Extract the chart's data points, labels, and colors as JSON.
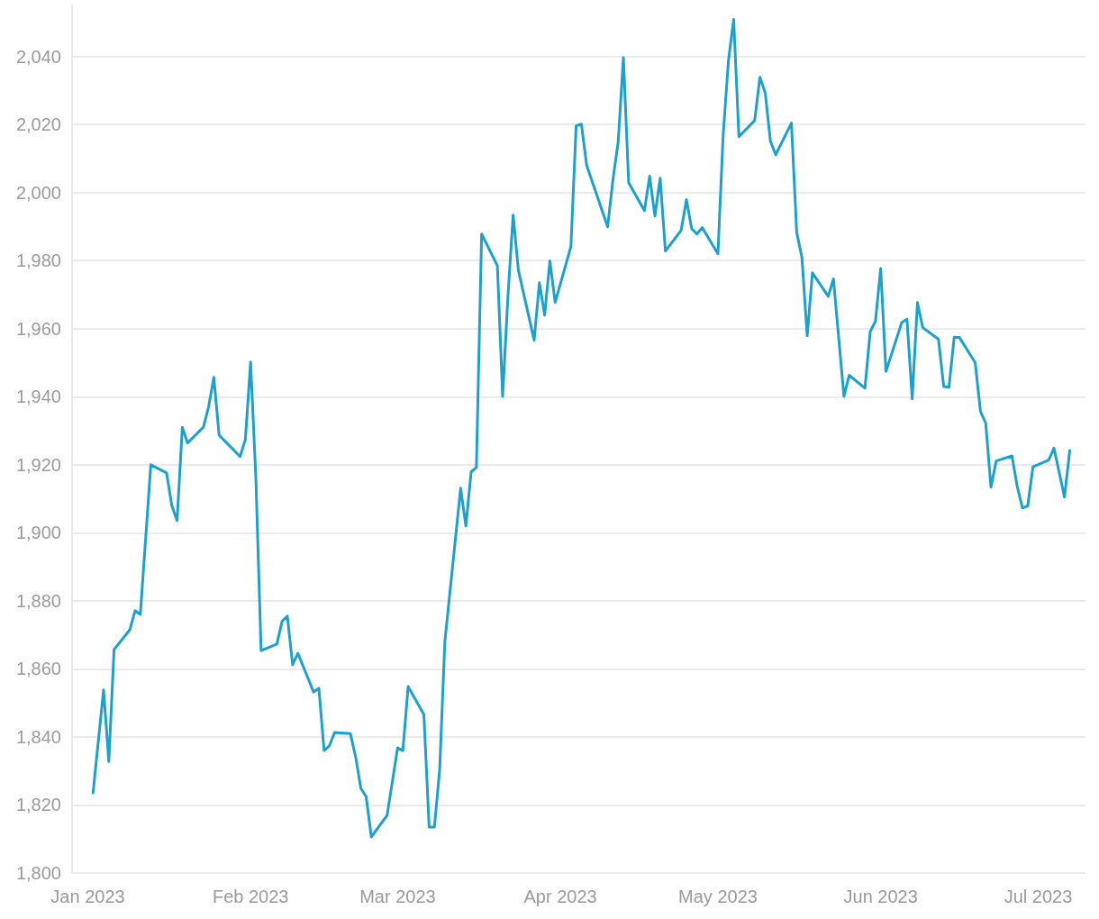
{
  "chart_data": {
    "type": "line",
    "xlim": [
      "2022-12-29",
      "2023-07-10"
    ],
    "ylim": [
      1800,
      2055
    ],
    "xticks": [
      {
        "value": "2023-01-01",
        "label": "Jan 2023"
      },
      {
        "value": "2023-02-01",
        "label": "Feb 2023"
      },
      {
        "value": "2023-03-01",
        "label": "Mar 2023"
      },
      {
        "value": "2023-04-01",
        "label": "Apr 2023"
      },
      {
        "value": "2023-05-01",
        "label": "May 2023"
      },
      {
        "value": "2023-06-01",
        "label": "Jun 2023"
      },
      {
        "value": "2023-07-01",
        "label": "Jul 2023"
      }
    ],
    "yticks": [
      {
        "value": 1800,
        "label": "1,800"
      },
      {
        "value": 1820,
        "label": "1,820"
      },
      {
        "value": 1840,
        "label": "1,840"
      },
      {
        "value": 1860,
        "label": "1,860"
      },
      {
        "value": 1880,
        "label": "1,880"
      },
      {
        "value": 1900,
        "label": "1,900"
      },
      {
        "value": 1920,
        "label": "1,920"
      },
      {
        "value": 1940,
        "label": "1,940"
      },
      {
        "value": 1960,
        "label": "1,960"
      },
      {
        "value": 1980,
        "label": "1,980"
      },
      {
        "value": 2000,
        "label": "2,000"
      },
      {
        "value": 2020,
        "label": "2,020"
      },
      {
        "value": 2040,
        "label": "2,040"
      }
    ],
    "grid": "y",
    "marker": "none",
    "line_style": "solid",
    "x": [
      "2023-01-02",
      "2023-01-04",
      "2023-01-05",
      "2023-01-06",
      "2023-01-09",
      "2023-01-10",
      "2023-01-11",
      "2023-01-13",
      "2023-01-16",
      "2023-01-17",
      "2023-01-18",
      "2023-01-19",
      "2023-01-20",
      "2023-01-23",
      "2023-01-24",
      "2023-01-25",
      "2023-01-26",
      "2023-01-30",
      "2023-01-31",
      "2023-02-01",
      "2023-02-02",
      "2023-02-03",
      "2023-02-06",
      "2023-02-07",
      "2023-02-08",
      "2023-02-09",
      "2023-02-10",
      "2023-02-13",
      "2023-02-14",
      "2023-02-15",
      "2023-02-16",
      "2023-02-17",
      "2023-02-20",
      "2023-02-21",
      "2023-02-22",
      "2023-02-23",
      "2023-02-24",
      "2023-02-27",
      "2023-03-01",
      "2023-03-02",
      "2023-03-03",
      "2023-03-06",
      "2023-03-07",
      "2023-03-08",
      "2023-03-09",
      "2023-03-10",
      "2023-03-13",
      "2023-03-14",
      "2023-03-15",
      "2023-03-16",
      "2023-03-17",
      "2023-03-20",
      "2023-03-21",
      "2023-03-22",
      "2023-03-23",
      "2023-03-24",
      "2023-03-27",
      "2023-03-28",
      "2023-03-29",
      "2023-03-30",
      "2023-03-31",
      "2023-04-03",
      "2023-04-04",
      "2023-04-05",
      "2023-04-06",
      "2023-04-10",
      "2023-04-11",
      "2023-04-12",
      "2023-04-13",
      "2023-04-14",
      "2023-04-17",
      "2023-04-18",
      "2023-04-19",
      "2023-04-20",
      "2023-04-21",
      "2023-04-24",
      "2023-04-25",
      "2023-04-26",
      "2023-04-27",
      "2023-04-28",
      "2023-05-01",
      "2023-05-02",
      "2023-05-03",
      "2023-05-04",
      "2023-05-05",
      "2023-05-08",
      "2023-05-09",
      "2023-05-10",
      "2023-05-11",
      "2023-05-12",
      "2023-05-15",
      "2023-05-16",
      "2023-05-17",
      "2023-05-18",
      "2023-05-19",
      "2023-05-22",
      "2023-05-23",
      "2023-05-25",
      "2023-05-26",
      "2023-05-29",
      "2023-05-30",
      "2023-05-31",
      "2023-06-01",
      "2023-06-02",
      "2023-06-05",
      "2023-06-06",
      "2023-06-07",
      "2023-06-08",
      "2023-06-09",
      "2023-06-12",
      "2023-06-13",
      "2023-06-14",
      "2023-06-15",
      "2023-06-16",
      "2023-06-19",
      "2023-06-20",
      "2023-06-21",
      "2023-06-22",
      "2023-06-23",
      "2023-06-26",
      "2023-06-27",
      "2023-06-28",
      "2023-06-29",
      "2023-06-30",
      "2023-07-03",
      "2023-07-04",
      "2023-07-06",
      "2023-07-07"
    ],
    "series": [
      {
        "color": "#1ba1cf",
        "values": [
          1823.6,
          1853.8,
          1832.8,
          1865.7,
          1871.5,
          1877.1,
          1876,
          1920,
          1917.6,
          1908,
          1903.6,
          1931,
          1926.4,
          1931,
          1937,
          1945.7,
          1928.7,
          1922.4,
          1927.4,
          1950.2,
          1916.3,
          1865.4,
          1867.3,
          1874,
          1875.5,
          1861.2,
          1864.6,
          1853.2,
          1854.3,
          1836,
          1837.4,
          1841.3,
          1841,
          1834.2,
          1824.9,
          1822.5,
          1810.6,
          1817,
          1836.8,
          1836,
          1854.8,
          1846.6,
          1813.5,
          1813.5,
          1830.2,
          1868.1,
          1913.1,
          1902,
          1917.9,
          1919.2,
          1987.8,
          1978.5,
          1940.1,
          1969.3,
          1993.4,
          1977.2,
          1956.6,
          1973.5,
          1964,
          1979.9,
          1967.7,
          1984.1,
          2019.6,
          2020.1,
          2008,
          1989.9,
          2003.7,
          2014.8,
          2039.7,
          2002.9,
          1994.7,
          2004.8,
          1993.1,
          2004.2,
          1982.8,
          1988.9,
          1997.9,
          1989.4,
          1987.8,
          1989.7,
          1982,
          2017,
          2038.7,
          2050.9,
          2016.4,
          2021.2,
          2033.9,
          2029.4,
          2015.1,
          2011.1,
          2020.4,
          1988.3,
          1980.9,
          1957.9,
          1976.4,
          1969.5,
          1974.6,
          1940.1,
          1946.3,
          1942.5,
          1959.1,
          1962.2,
          1977.7,
          1947.4,
          1961.8,
          1962.8,
          1939.4,
          1967.7,
          1960.3,
          1956.9,
          1943,
          1942.8,
          1957.5,
          1957.4,
          1950,
          1935.7,
          1932.2,
          1913.4,
          1921.1,
          1922.6,
          1913.6,
          1907.3,
          1907.9,
          1919.4,
          1921.4,
          1924.9,
          1910.5,
          1924.2
        ]
      }
    ]
  }
}
